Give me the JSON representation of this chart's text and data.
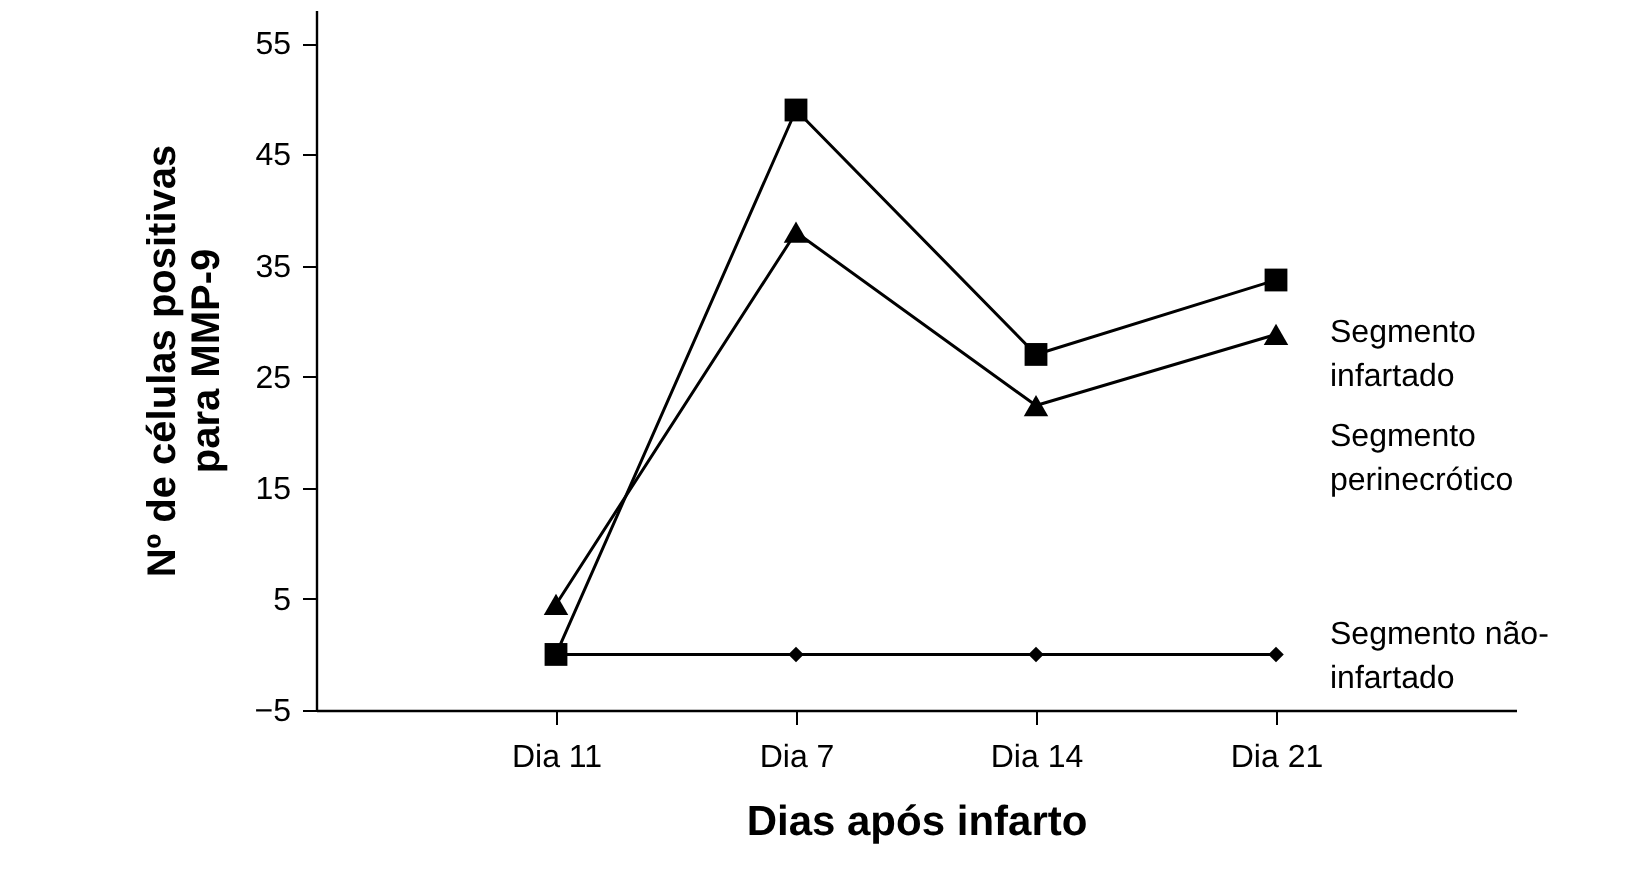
{
  "chart_data": {
    "type": "line",
    "xlabel": "Dias após infarto",
    "ylabel": "Nº de células positivas para MMP-9",
    "categories": [
      "Dia 11",
      "Dia 7",
      "Dia 14",
      "Dia 21"
    ],
    "series": [
      {
        "name": "Segmento infartado",
        "color": "#000000",
        "marker": "square",
        "values": [
          0,
          49,
          27,
          33.7
        ]
      },
      {
        "name": "Segmento perinecrótico",
        "color": "#000000",
        "marker": "triangle",
        "values": [
          4.5,
          38,
          22.4,
          28.8
        ]
      },
      {
        "name": "Segmento não-infartado",
        "color": "#000000",
        "marker": "diamond",
        "values": [
          0,
          0,
          0,
          0
        ]
      }
    ],
    "ylim": [
      -5,
      58
    ],
    "yticks": [
      -5,
      5,
      15,
      25,
      35,
      45,
      55
    ],
    "grid": false
  }
}
